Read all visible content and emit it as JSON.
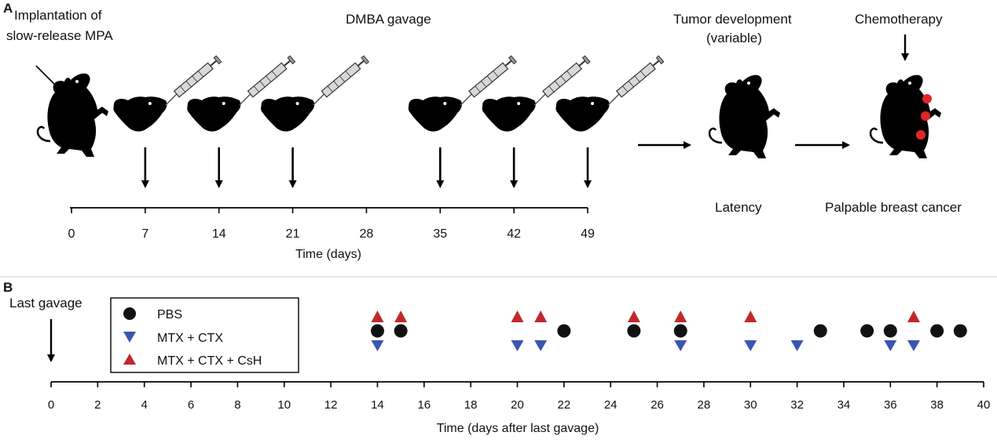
{
  "panel_a": {
    "label": "A",
    "implant_label_line1": "Implantation of",
    "implant_label_line2": "slow-release MPA",
    "gavage_label": "DMBA gavage",
    "tumor_label_line1": "Tumor development",
    "tumor_label_line2": "(variable)",
    "chemo_label": "Chemotherapy",
    "latency_label": "Latency",
    "palpable_label": "Palpable breast cancer",
    "axis_label": "Time (days)",
    "ticks": [
      "0",
      "7",
      "14",
      "21",
      "28",
      "35",
      "42",
      "49"
    ],
    "gavage_days": [
      7,
      14,
      21,
      35,
      42,
      49
    ]
  },
  "panel_b": {
    "label": "B",
    "last_gavage_label": "Last gavage",
    "axis_label": "Time (days after last gavage)",
    "legend": [
      {
        "name": "PBS",
        "marker": "circle",
        "color": "#111111"
      },
      {
        "name": "MTX + CTX",
        "marker": "triangle-down",
        "color": "#3a56b0"
      },
      {
        "name": "MTX + CTX + CsH",
        "marker": "triangle-up",
        "color": "#c0282d"
      }
    ]
  },
  "chart_data": {
    "type": "scatter",
    "xlabel": "Time (days after last gavage)",
    "xlim": [
      0,
      40
    ],
    "xticks": [
      "0",
      "2",
      "4",
      "6",
      "8",
      "10",
      "12",
      "14",
      "16",
      "18",
      "20",
      "22",
      "24",
      "26",
      "28",
      "30",
      "32",
      "34",
      "36",
      "38",
      "40"
    ],
    "series": [
      {
        "name": "PBS",
        "x": [
          14,
          15,
          22,
          25,
          27,
          33,
          35,
          36,
          38,
          39
        ]
      },
      {
        "name": "MTX + CTX",
        "x": [
          14,
          20,
          21,
          27,
          30,
          32,
          36,
          37
        ]
      },
      {
        "name": "MTX + CTX + CsH",
        "x": [
          14,
          15,
          20,
          21,
          25,
          27,
          30,
          37
        ]
      }
    ]
  }
}
